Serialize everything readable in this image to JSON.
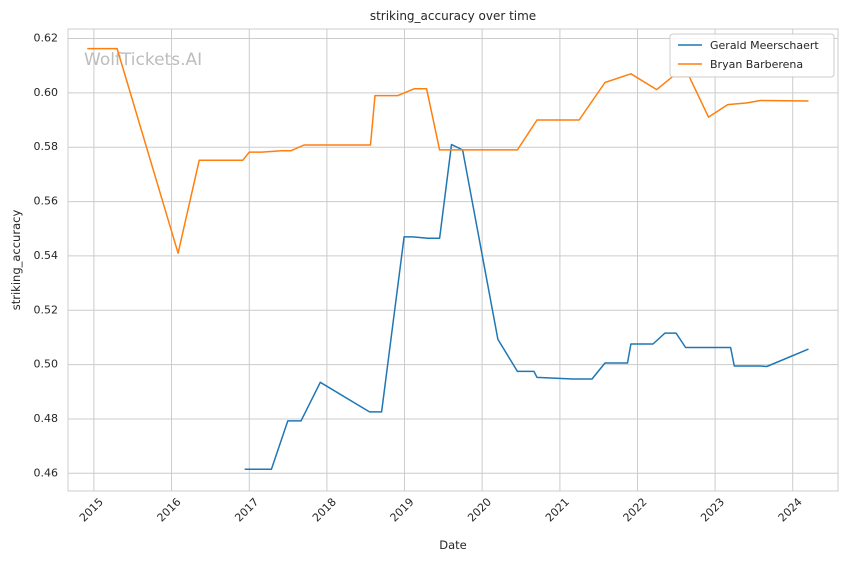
{
  "watermark": "WolfTickets.AI",
  "chart_data": {
    "type": "line",
    "title": "striking_accuracy over time",
    "xlabel": "Date",
    "ylabel": "striking_accuracy",
    "x_type": "date",
    "xlim": [
      "2014-09-01",
      "2024-08-01"
    ],
    "ylim": [
      0.4535,
      0.6235
    ],
    "x_ticks": [
      "2015-01-01",
      "2016-01-01",
      "2017-01-01",
      "2018-01-01",
      "2019-01-01",
      "2020-01-01",
      "2021-01-01",
      "2022-01-01",
      "2023-01-01",
      "2024-01-01"
    ],
    "x_tick_labels": [
      "2015",
      "2016",
      "2017",
      "2018",
      "2019",
      "2020",
      "2021",
      "2022",
      "2023",
      "2024"
    ],
    "y_ticks": [
      0.46,
      0.48,
      0.5,
      0.52,
      0.54,
      0.56,
      0.58,
      0.6,
      0.62
    ],
    "y_tick_labels": [
      "0.46",
      "0.48",
      "0.50",
      "0.52",
      "0.54",
      "0.56",
      "0.58",
      "0.60",
      "0.62"
    ],
    "grid": true,
    "legend_position": "top-right",
    "series": [
      {
        "name": "Gerald Meerschaert",
        "color": "#1f77b4",
        "points": [
          [
            "2016-12-10",
            0.4615
          ],
          [
            "2017-04-15",
            0.4615
          ],
          [
            "2017-07-01",
            0.4793
          ],
          [
            "2017-09-01",
            0.4793
          ],
          [
            "2017-12-01",
            0.4935
          ],
          [
            "2018-07-20",
            0.4826
          ],
          [
            "2018-09-15",
            0.4826
          ],
          [
            "2018-12-30",
            0.547
          ],
          [
            "2019-02-10",
            0.547
          ],
          [
            "2019-04-20",
            0.5465
          ],
          [
            "2019-06-15",
            0.5465
          ],
          [
            "2019-08-10",
            0.581
          ],
          [
            "2019-10-01",
            0.579
          ],
          [
            "2020-03-15",
            0.5093
          ],
          [
            "2020-06-15",
            0.4975
          ],
          [
            "2020-09-01",
            0.4975
          ],
          [
            "2020-09-15",
            0.4953
          ],
          [
            "2021-03-01",
            0.4947
          ],
          [
            "2021-06-01",
            0.4947
          ],
          [
            "2021-08-01",
            0.5006
          ],
          [
            "2021-11-15",
            0.5006
          ],
          [
            "2021-12-01",
            0.5076
          ],
          [
            "2022-03-15",
            0.5076
          ],
          [
            "2022-05-10",
            0.5116
          ],
          [
            "2022-07-01",
            0.5116
          ],
          [
            "2022-08-15",
            0.5063
          ],
          [
            "2023-03-15",
            0.5063
          ],
          [
            "2023-04-01",
            0.4995
          ],
          [
            "2023-08-01",
            0.4995
          ],
          [
            "2023-09-01",
            0.4993
          ],
          [
            "2024-03-15",
            0.5057
          ]
        ]
      },
      {
        "name": "Bryan Barberena",
        "color": "#ff7f0e",
        "points": [
          [
            "2014-12-01",
            0.6163
          ],
          [
            "2015-04-20",
            0.6163
          ],
          [
            "2016-02-01",
            0.541
          ],
          [
            "2016-05-10",
            0.5752
          ],
          [
            "2016-12-01",
            0.5752
          ],
          [
            "2017-01-01",
            0.5782
          ],
          [
            "2017-03-01",
            0.5782
          ],
          [
            "2017-06-01",
            0.5787
          ],
          [
            "2017-07-15",
            0.5787
          ],
          [
            "2017-09-15",
            0.5808
          ],
          [
            "2018-07-25",
            0.5808
          ],
          [
            "2018-08-15",
            0.599
          ],
          [
            "2018-12-01",
            0.599
          ],
          [
            "2019-02-15",
            0.6015
          ],
          [
            "2019-04-15",
            0.6015
          ],
          [
            "2019-06-15",
            0.579
          ],
          [
            "2020-06-15",
            0.579
          ],
          [
            "2020-09-15",
            0.59
          ],
          [
            "2021-04-01",
            0.59
          ],
          [
            "2021-08-01",
            0.6038
          ],
          [
            "2021-12-01",
            0.607
          ],
          [
            "2022-04-01",
            0.6012
          ],
          [
            "2022-06-15",
            0.606
          ],
          [
            "2022-09-01",
            0.606
          ],
          [
            "2022-12-01",
            0.5911
          ],
          [
            "2023-03-01",
            0.5957
          ],
          [
            "2023-06-01",
            0.5963
          ],
          [
            "2023-08-01",
            0.5972
          ],
          [
            "2024-03-15",
            0.597
          ]
        ]
      }
    ]
  }
}
